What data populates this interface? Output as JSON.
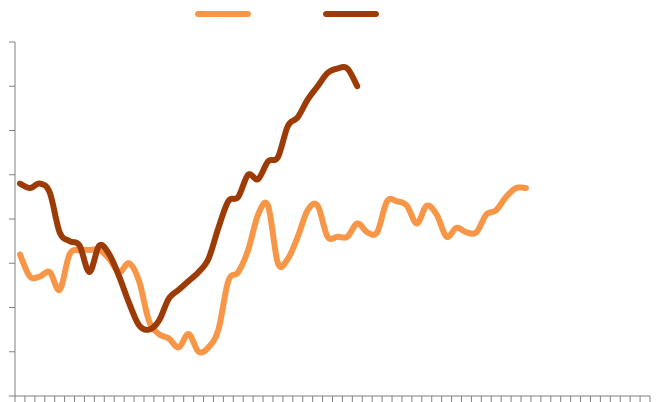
{
  "chart_data": {
    "type": "line",
    "title": "",
    "xlabel": "",
    "ylabel": "",
    "legend_placement": "top-center",
    "grid": false,
    "x_count": 64,
    "ylim": [
      0,
      8
    ],
    "series": [
      {
        "color": "#f79646",
        "values": [
          3.2,
          2.7,
          2.7,
          2.8,
          2.4,
          3.2,
          3.3,
          3.3,
          3.3,
          3.1,
          2.8,
          3.0,
          2.6,
          1.7,
          1.4,
          1.3,
          1.1,
          1.4,
          1.0,
          1.1,
          1.5,
          2.6,
          2.8,
          3.3,
          4.1,
          4.3,
          3.0,
          3.1,
          3.6,
          4.2,
          4.3,
          3.6,
          3.6,
          3.6,
          3.9,
          3.7,
          3.7,
          4.4,
          4.4,
          4.3,
          3.9,
          4.3,
          4.1,
          3.6,
          3.8,
          3.7,
          3.7,
          4.1,
          4.2,
          4.5,
          4.7,
          4.7
        ]
      },
      {
        "color": "#9c3b05",
        "values": [
          4.8,
          4.7,
          4.8,
          4.6,
          3.7,
          3.5,
          3.4,
          2.8,
          3.4,
          3.2,
          2.7,
          2.1,
          1.6,
          1.5,
          1.7,
          2.2,
          2.4,
          2.6,
          2.8,
          3.1,
          3.8,
          4.4,
          4.5,
          5.0,
          4.9,
          5.3,
          5.4,
          6.1,
          6.3,
          6.7,
          7.0,
          7.3,
          7.4,
          7.4,
          7.0
        ]
      }
    ]
  }
}
